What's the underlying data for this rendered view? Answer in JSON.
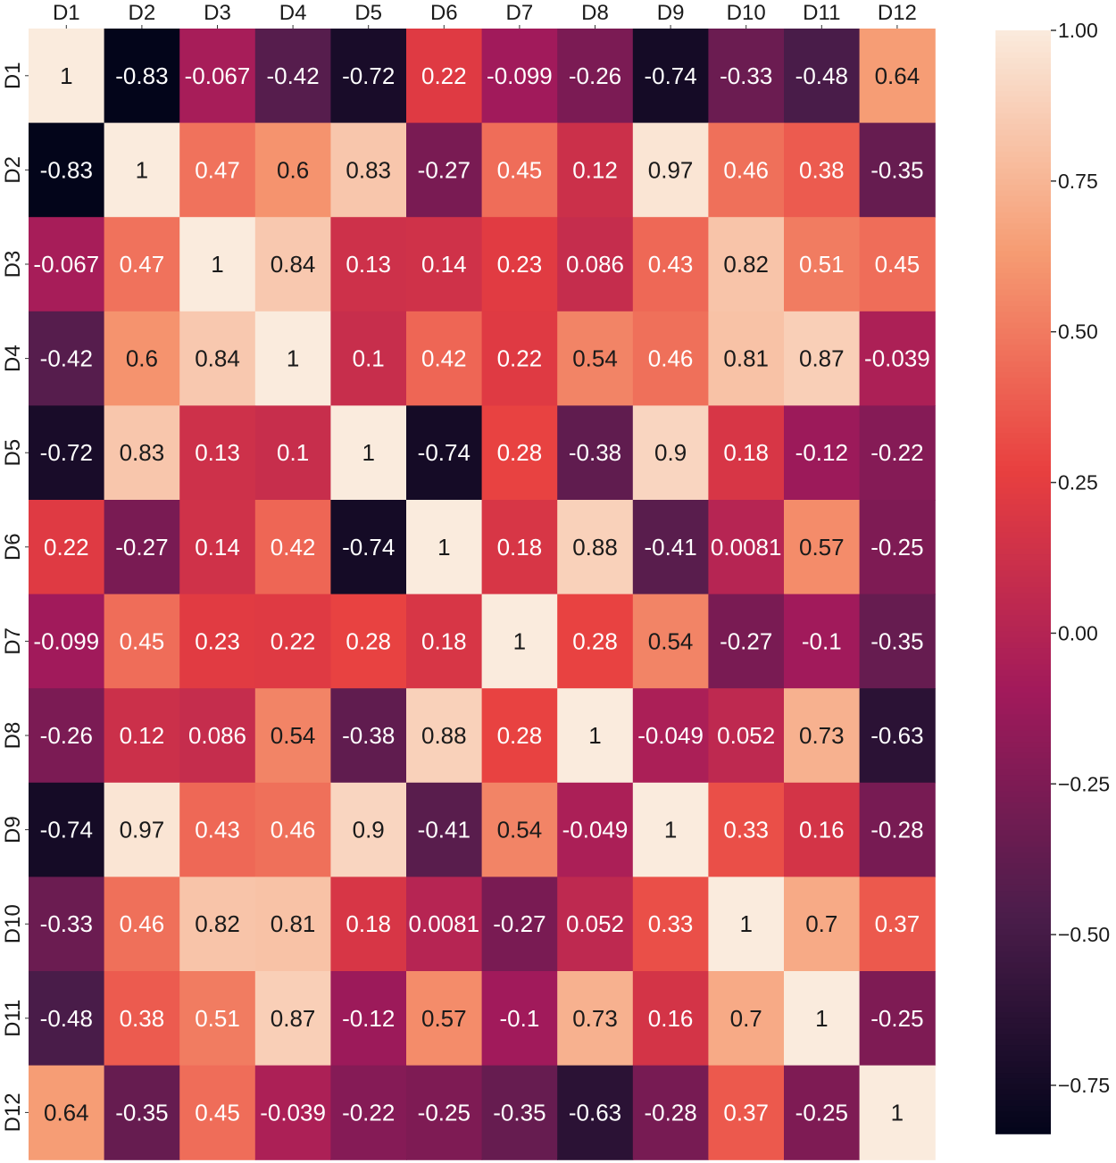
{
  "chart_data": {
    "type": "heatmap",
    "title": "",
    "xlabel": "",
    "ylabel": "",
    "x_labels": [
      "D1",
      "D2",
      "D3",
      "D4",
      "D5",
      "D6",
      "D7",
      "D8",
      "D9",
      "D10",
      "D11",
      "D12"
    ],
    "y_labels": [
      "D1",
      "D2",
      "D3",
      "D4",
      "D5",
      "D6",
      "D7",
      "D8",
      "D9",
      "D10",
      "D11",
      "D12"
    ],
    "values": [
      [
        1,
        -0.83,
        -0.067,
        -0.42,
        -0.72,
        0.22,
        -0.099,
        -0.26,
        -0.74,
        -0.33,
        -0.48,
        0.64
      ],
      [
        -0.83,
        1,
        0.47,
        0.6,
        0.83,
        -0.27,
        0.45,
        0.12,
        0.97,
        0.46,
        0.38,
        -0.35
      ],
      [
        -0.067,
        0.47,
        1,
        0.84,
        0.13,
        0.14,
        0.23,
        0.086,
        0.43,
        0.82,
        0.51,
        0.45
      ],
      [
        -0.42,
        0.6,
        0.84,
        1,
        0.1,
        0.42,
        0.22,
        0.54,
        0.46,
        0.81,
        0.87,
        -0.039
      ],
      [
        -0.72,
        0.83,
        0.13,
        0.1,
        1,
        -0.74,
        0.28,
        -0.38,
        0.9,
        0.18,
        -0.12,
        -0.22
      ],
      [
        0.22,
        -0.27,
        0.14,
        0.42,
        -0.74,
        1,
        0.18,
        0.88,
        -0.41,
        0.0081,
        0.57,
        -0.25
      ],
      [
        -0.099,
        0.45,
        0.23,
        0.22,
        0.28,
        0.18,
        1,
        0.28,
        0.54,
        -0.27,
        -0.1,
        -0.35
      ],
      [
        -0.26,
        0.12,
        0.086,
        0.54,
        -0.38,
        0.88,
        0.28,
        1,
        -0.049,
        0.052,
        0.73,
        -0.63
      ],
      [
        -0.74,
        0.97,
        0.43,
        0.46,
        0.9,
        -0.41,
        0.54,
        -0.049,
        1,
        0.33,
        0.16,
        -0.28
      ],
      [
        -0.33,
        0.46,
        0.82,
        0.81,
        0.18,
        0.0081,
        -0.27,
        0.052,
        0.33,
        1,
        0.7,
        0.37
      ],
      [
        -0.48,
        0.38,
        0.51,
        0.87,
        -0.12,
        0.57,
        -0.1,
        0.73,
        0.16,
        0.7,
        1,
        -0.25
      ],
      [
        0.64,
        -0.35,
        0.45,
        -0.039,
        -0.22,
        -0.25,
        -0.35,
        -0.63,
        -0.28,
        0.37,
        -0.25,
        1
      ]
    ],
    "labels": [
      [
        "1",
        "-0.83",
        "-0.067",
        "-0.42",
        "-0.72",
        "0.22",
        "-0.099",
        "-0.26",
        "-0.74",
        "-0.33",
        "-0.48",
        "0.64"
      ],
      [
        "-0.83",
        "1",
        "0.47",
        "0.6",
        "0.83",
        "-0.27",
        "0.45",
        "0.12",
        "0.97",
        "0.46",
        "0.38",
        "-0.35"
      ],
      [
        "-0.067",
        "0.47",
        "1",
        "0.84",
        "0.13",
        "0.14",
        "0.23",
        "0.086",
        "0.43",
        "0.82",
        "0.51",
        "0.45"
      ],
      [
        "-0.42",
        "0.6",
        "0.84",
        "1",
        "0.1",
        "0.42",
        "0.22",
        "0.54",
        "0.46",
        "0.81",
        "0.87",
        "-0.039"
      ],
      [
        "-0.72",
        "0.83",
        "0.13",
        "0.1",
        "1",
        "-0.74",
        "0.28",
        "-0.38",
        "0.9",
        "0.18",
        "-0.12",
        "-0.22"
      ],
      [
        "0.22",
        "-0.27",
        "0.14",
        "0.42",
        "-0.74",
        "1",
        "0.18",
        "0.88",
        "-0.41",
        "0.0081",
        "0.57",
        "-0.25"
      ],
      [
        "-0.099",
        "0.45",
        "0.23",
        "0.22",
        "0.28",
        "0.18",
        "1",
        "0.28",
        "0.54",
        "-0.27",
        "-0.1",
        "-0.35"
      ],
      [
        "-0.26",
        "0.12",
        "0.086",
        "0.54",
        "-0.38",
        "0.88",
        "0.28",
        "1",
        "-0.049",
        "0.052",
        "0.73",
        "-0.63"
      ],
      [
        "-0.74",
        "0.97",
        "0.43",
        "0.46",
        "0.9",
        "-0.41",
        "0.54",
        "-0.049",
        "1",
        "0.33",
        "0.16",
        "-0.28"
      ],
      [
        "-0.33",
        "0.46",
        "0.82",
        "0.81",
        "0.18",
        "0.0081",
        "-0.27",
        "0.052",
        "0.33",
        "1",
        "0.7",
        "0.37"
      ],
      [
        "-0.48",
        "0.38",
        "0.51",
        "0.87",
        "-0.12",
        "0.57",
        "-0.1",
        "0.73",
        "0.16",
        "0.7",
        "1",
        "-0.25"
      ],
      [
        "0.64",
        "-0.35",
        "0.45",
        "-0.039",
        "-0.22",
        "-0.25",
        "-0.35",
        "-0.63",
        "-0.28",
        "0.37",
        "-0.25",
        "1"
      ]
    ],
    "colorbar": {
      "vmin": -0.83,
      "vmax": 1.0,
      "ticks": [
        1.0,
        0.75,
        0.5,
        0.25,
        0.0,
        -0.25,
        -0.5,
        -0.75
      ],
      "tick_labels": [
        "1.00",
        "0.75",
        "0.50",
        "0.25",
        "0.00",
        "−0.25",
        "−0.50",
        "−0.75"
      ]
    },
    "colormap": "rocket",
    "colormap_stops": [
      "#03051a",
      "#4c1d4b",
      "#a11a5b",
      "#e83f3f",
      "#f69c73",
      "#faebdd"
    ]
  }
}
